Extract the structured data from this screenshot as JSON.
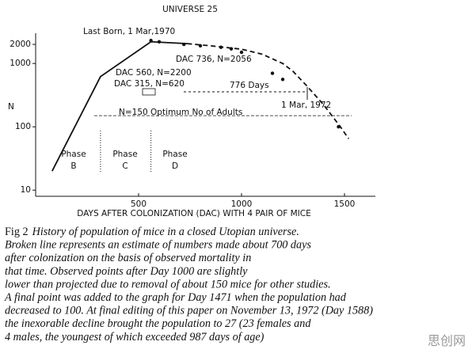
{
  "chart_data": {
    "type": "line",
    "title": "UNIVERSE 25",
    "x_label": "DAYS AFTER COLONIZATION (DAC) WITH 4 PAIR OF MICE",
    "y_label": "N",
    "xlim": [
      0,
      1650
    ],
    "xticks": [
      500,
      1000,
      1500
    ],
    "ylim": [
      8,
      3000
    ],
    "yticks": [
      10,
      100,
      1000,
      2000
    ],
    "yscale": "log",
    "series": [
      {
        "color": "#111111",
        "dash": false,
        "x": [
          80,
          315,
          560,
          736
        ],
        "values": [
          20,
          620,
          2200,
          2056
        ]
      },
      {
        "color": "#111111",
        "dash": true,
        "x": [
          736,
          850,
          1000,
          1100,
          1200,
          1250,
          1315,
          1400,
          1480,
          1520
        ],
        "values": [
          2056,
          1900,
          1680,
          1400,
          1000,
          750,
          450,
          220,
          100,
          65
        ]
      }
    ],
    "points": {
      "color": "#111111",
      "x": [
        560,
        600,
        720,
        800,
        900,
        950,
        1000,
        1150,
        1200,
        1471
      ],
      "values": [
        2300,
        2200,
        2000,
        1900,
        1800,
        1700,
        1500,
        700,
        560,
        100
      ]
    },
    "reference_value": 150,
    "phase_bounds": [
      315,
      560
    ],
    "annotations": [
      "Last Born, 1 Mar,1970",
      "DAC 736, N=2056",
      "DAC 560, N=2200",
      "DAC 315, N=620",
      "776 Days",
      "1 Mar, 1972",
      "N=150  Optimum No of Adults"
    ],
    "phases": [
      {
        "word": "Phase",
        "letter": "B"
      },
      {
        "word": "Phase",
        "letter": "C"
      },
      {
        "word": "Phase",
        "letter": "D"
      }
    ]
  },
  "caption": {
    "label": "Fig 2",
    "lines": [
      "History of population of mice in a closed Utopian universe.",
      "Broken line represents an estimate of numbers made about 700 days",
      "after colonization on the basis of observed mortality in",
      "that time. Observed points after Day 1000 are slightly",
      "lower than projected due to removal of about 150 mice for other studies.",
      "A final point was added to the graph for Day 1471 when the population had",
      "decreased to 100. At final editing of this paper on November 13, 1972 (Day 1588)",
      "the inexorable decline brought the population to 27 (23 females and",
      "4 males, the youngest of which exceeded 987 days of age)"
    ]
  },
  "watermark": "思创网"
}
